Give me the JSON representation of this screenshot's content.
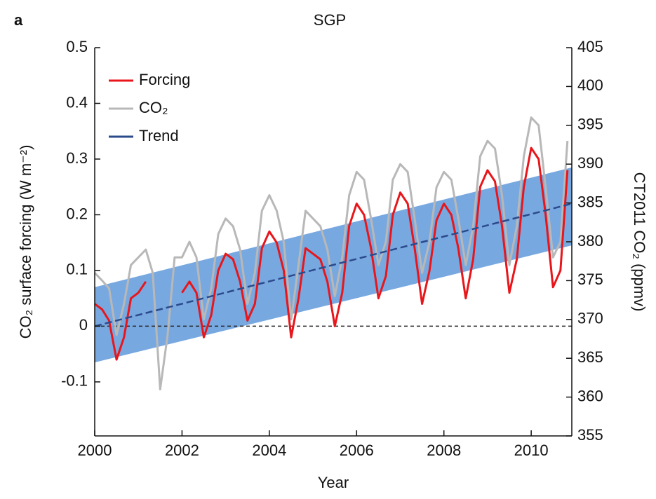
{
  "chart_data": {
    "type": "line",
    "panel_label": "a",
    "title": "SGP",
    "x_label": "Year",
    "y_label": "CO₂ surface forcing (W m⁻²)",
    "y2_label": "CT2011 CO₂ (ppmv)",
    "xlim": [
      2000,
      2010.93
    ],
    "xticks": [
      2000,
      2002,
      2004,
      2006,
      2008,
      2010
    ],
    "ylim": [
      -0.197,
      0.5
    ],
    "yticks": [
      -0.1,
      0,
      0.1,
      0.2,
      0.3,
      0.4,
      0.5
    ],
    "y2lim": [
      355,
      405
    ],
    "y2ticks": [
      355,
      360,
      365,
      370,
      375,
      380,
      385,
      390,
      395,
      400,
      405
    ],
    "reference_line": 0,
    "legend": "top-left",
    "x": [
      2000,
      2000.17,
      2000.33,
      2000.5,
      2000.67,
      2000.83,
      2001,
      2001.17,
      2001.33,
      2001.5,
      2001.67,
      2001.83,
      2002,
      2002.17,
      2002.33,
      2002.5,
      2002.67,
      2002.83,
      2003,
      2003.17,
      2003.33,
      2003.5,
      2003.67,
      2003.83,
      2004,
      2004.17,
      2004.33,
      2004.5,
      2004.67,
      2004.83,
      2005,
      2005.17,
      2005.33,
      2005.5,
      2005.67,
      2005.83,
      2006,
      2006.17,
      2006.33,
      2006.5,
      2006.67,
      2006.83,
      2007,
      2007.17,
      2007.33,
      2007.5,
      2007.67,
      2007.83,
      2008,
      2008.17,
      2008.33,
      2008.5,
      2008.67,
      2008.83,
      2009,
      2009.17,
      2009.33,
      2009.5,
      2009.67,
      2009.83,
      2010,
      2010.17,
      2010.33,
      2010.5,
      2010.67,
      2010.83
    ],
    "series": [
      {
        "name": "CO₂",
        "color": "#b8b8b8",
        "axis": "y2",
        "values": [
          376,
          375,
          374,
          368,
          372,
          377,
          378,
          379,
          376,
          361,
          368,
          378,
          378,
          380,
          378,
          370,
          374,
          381,
          383,
          382,
          379,
          372,
          376,
          384,
          386,
          384,
          380,
          370,
          377,
          384,
          383,
          382,
          379,
          373,
          378,
          386,
          389,
          388,
          383,
          377,
          380,
          388,
          390,
          389,
          383,
          376,
          380,
          387,
          389,
          388,
          383,
          377,
          382,
          391,
          393,
          392,
          386,
          377,
          382,
          391,
          396,
          395,
          387,
          378,
          380,
          393
        ]
      },
      {
        "name": "Forcing",
        "color": "#e8161b",
        "values": [
          0.04,
          0.03,
          0.01,
          -0.06,
          -0.02,
          0.05,
          0.06,
          0.08,
          null,
          null,
          null,
          null,
          0.06,
          0.08,
          0.06,
          -0.02,
          0.02,
          0.1,
          0.13,
          0.12,
          0.08,
          0.01,
          0.04,
          0.14,
          0.17,
          0.15,
          0.1,
          -0.02,
          0.05,
          0.14,
          0.13,
          0.12,
          0.08,
          0.0,
          0.06,
          0.18,
          0.22,
          0.2,
          0.14,
          0.05,
          0.09,
          0.2,
          0.24,
          0.22,
          0.14,
          0.04,
          0.1,
          0.19,
          0.22,
          0.2,
          0.14,
          0.05,
          0.12,
          0.25,
          0.28,
          0.26,
          0.18,
          0.06,
          0.12,
          0.25,
          0.32,
          0.3,
          0.2,
          0.07,
          0.1,
          0.28
        ]
      }
    ],
    "trend": {
      "name": "Trend",
      "color": "#2b4a8c",
      "band_color": "#78a8e0",
      "x": [
        2000,
        2010.93
      ],
      "values": [
        0,
        0.22
      ],
      "band_lower": [
        -0.065,
        0.145
      ],
      "band_upper": [
        0.07,
        0.285
      ]
    },
    "legend_order": [
      "Forcing",
      "CO₂",
      "Trend"
    ]
  }
}
